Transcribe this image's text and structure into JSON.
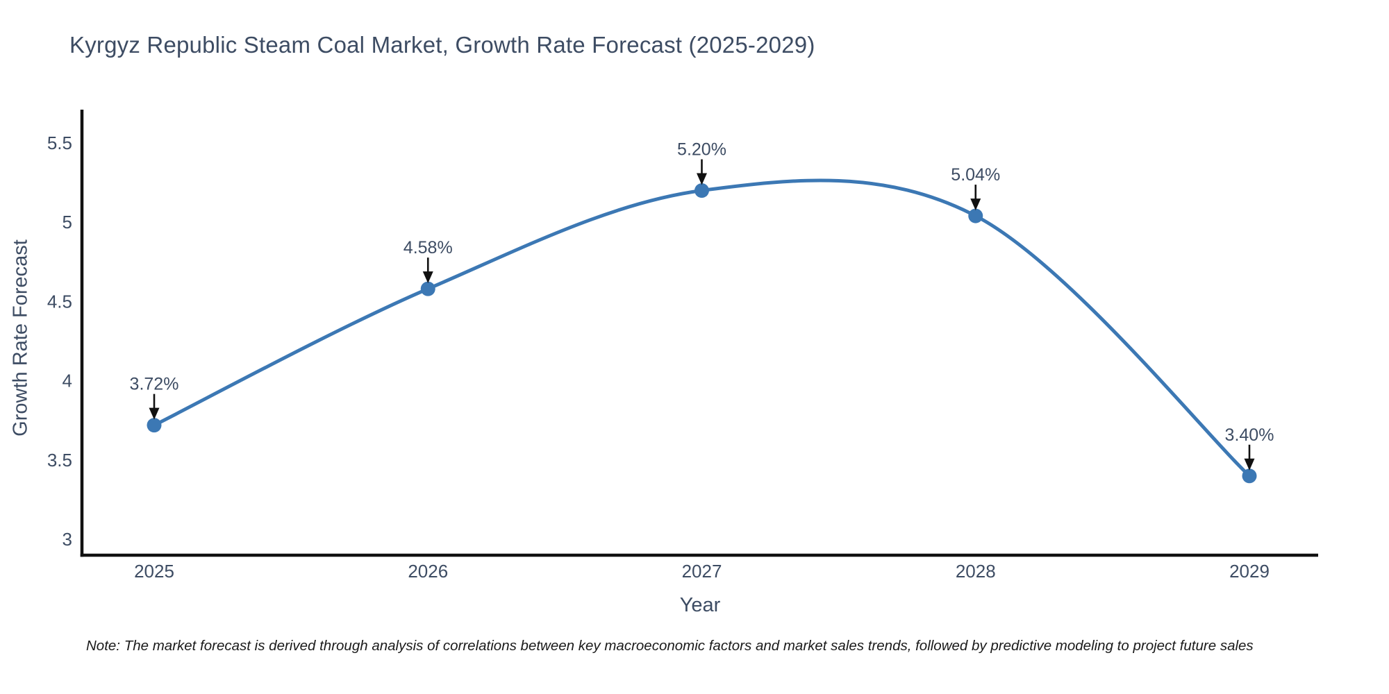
{
  "note": "Note: The market forecast is derived through analysis of correlations between key macroeconomic factors and market sales trends, followed by predictive modeling to project future sales",
  "chart_data": {
    "type": "line",
    "title": "Kyrgyz Republic Steam Coal Market, Growth Rate Forecast (2025-2029)",
    "xlabel": "Year",
    "ylabel": "Growth Rate Forecast",
    "categories": [
      "2025",
      "2026",
      "2027",
      "2028",
      "2029"
    ],
    "series": [
      {
        "name": "Growth Rate Forecast",
        "values": [
          3.72,
          4.58,
          5.2,
          5.04,
          3.4
        ],
        "point_labels": [
          "3.72%",
          "4.58%",
          "5.20%",
          "5.04%",
          "3.40%"
        ]
      }
    ],
    "y_ticks": [
      3,
      3.5,
      4,
      4.5,
      5,
      5.5
    ],
    "y_tick_labels": [
      "3",
      "3.5",
      "4",
      "4.5",
      "5",
      "5.5"
    ],
    "ylim": [
      2.9,
      5.71
    ],
    "grid": false,
    "legend": false,
    "line_shape": "spline",
    "annotation_style": "value label above point with black down arrow",
    "colors": {
      "line": "#3c78b4",
      "marker": "#3c78b4",
      "axis": "#111111",
      "text": "#3d4c63",
      "annotation_text": "#3d4c63",
      "annotation_arrow": "#111111",
      "background": "#ffffff"
    }
  }
}
